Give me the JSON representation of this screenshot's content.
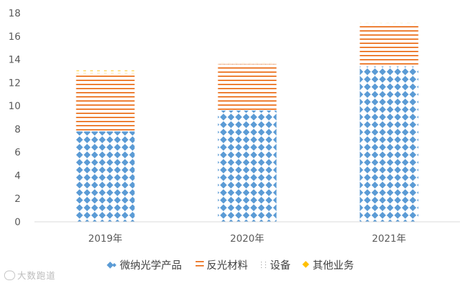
{
  "chart_data": {
    "type": "bar",
    "stacked": true,
    "categories": [
      "2019年",
      "2020年",
      "2021年"
    ],
    "series": [
      {
        "name": "微纳光学产品",
        "values": [
          7.8,
          9.6,
          13.4
        ],
        "color": "#5B9BD5",
        "pattern": "diamonds"
      },
      {
        "name": "反光材料",
        "values": [
          4.9,
          4.0,
          3.6
        ],
        "color": "#ED7D31",
        "pattern": "horizontal-lines"
      },
      {
        "name": "设备",
        "values": [
          0.1,
          0.1,
          0.1
        ],
        "color": "#A5A5A5",
        "pattern": "dots"
      },
      {
        "name": "其他业务",
        "values": [
          0.25,
          0.05,
          0.05
        ],
        "color": "#FFC000",
        "pattern": "dashes"
      }
    ],
    "ylim": [
      0,
      18
    ],
    "yticks": [
      0,
      2,
      4,
      6,
      8,
      10,
      12,
      14,
      16,
      18
    ],
    "grid": false,
    "legend_position": "bottom"
  },
  "watermark": "大数跑道"
}
